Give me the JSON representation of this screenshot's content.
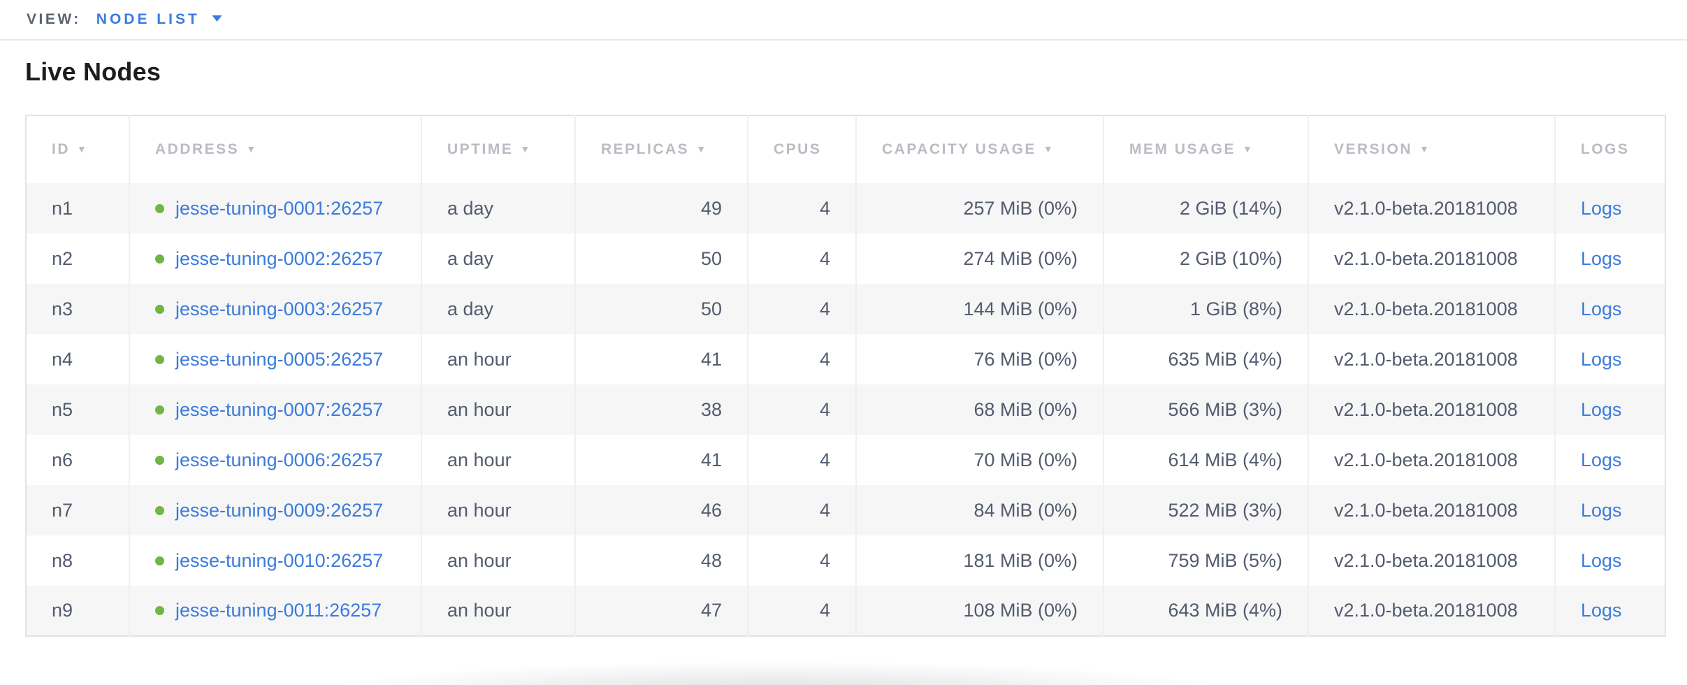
{
  "view_bar": {
    "label": "VIEW:",
    "selected_view": "NODE LIST"
  },
  "page": {
    "title": "Live Nodes"
  },
  "table": {
    "columns": [
      {
        "key": "id",
        "label": "ID",
        "sortable": true,
        "sorted_desc": true
      },
      {
        "key": "address",
        "label": "ADDRESS",
        "sortable": true,
        "sorted_desc": true
      },
      {
        "key": "uptime",
        "label": "UPTIME",
        "sortable": true,
        "sorted_desc": true
      },
      {
        "key": "replicas",
        "label": "REPLICAS",
        "sortable": true,
        "sorted_desc": true
      },
      {
        "key": "cpus",
        "label": "CPUS",
        "sortable": false,
        "sorted_desc": false
      },
      {
        "key": "capacity",
        "label": "CAPACITY USAGE",
        "sortable": true,
        "sorted_desc": true
      },
      {
        "key": "mem",
        "label": "MEM USAGE",
        "sortable": true,
        "sorted_desc": true
      },
      {
        "key": "version",
        "label": "VERSION",
        "sortable": true,
        "sorted_desc": true
      },
      {
        "key": "logs",
        "label": "LOGS",
        "sortable": false,
        "sorted_desc": false
      }
    ],
    "rows": [
      {
        "id": "n1",
        "status_icon": "green-dot",
        "address": "jesse-tuning-0001:26257",
        "uptime": "a day",
        "replicas": "49",
        "cpus": "4",
        "capacity": "257 MiB (0%)",
        "mem": "2 GiB (14%)",
        "version": "v2.1.0-beta.20181008",
        "logs": "Logs"
      },
      {
        "id": "n2",
        "status_icon": "green-dot",
        "address": "jesse-tuning-0002:26257",
        "uptime": "a day",
        "replicas": "50",
        "cpus": "4",
        "capacity": "274 MiB (0%)",
        "mem": "2 GiB (10%)",
        "version": "v2.1.0-beta.20181008",
        "logs": "Logs"
      },
      {
        "id": "n3",
        "status_icon": "green-dot",
        "address": "jesse-tuning-0003:26257",
        "uptime": "a day",
        "replicas": "50",
        "cpus": "4",
        "capacity": "144 MiB (0%)",
        "mem": "1 GiB (8%)",
        "version": "v2.1.0-beta.20181008",
        "logs": "Logs"
      },
      {
        "id": "n4",
        "status_icon": "green-dot",
        "address": "jesse-tuning-0005:26257",
        "uptime": "an hour",
        "replicas": "41",
        "cpus": "4",
        "capacity": "76 MiB (0%)",
        "mem": "635 MiB (4%)",
        "version": "v2.1.0-beta.20181008",
        "logs": "Logs"
      },
      {
        "id": "n5",
        "status_icon": "green-dot",
        "address": "jesse-tuning-0007:26257",
        "uptime": "an hour",
        "replicas": "38",
        "cpus": "4",
        "capacity": "68 MiB (0%)",
        "mem": "566 MiB (3%)",
        "version": "v2.1.0-beta.20181008",
        "logs": "Logs"
      },
      {
        "id": "n6",
        "status_icon": "green-dot",
        "address": "jesse-tuning-0006:26257",
        "uptime": "an hour",
        "replicas": "41",
        "cpus": "4",
        "capacity": "70 MiB (0%)",
        "mem": "614 MiB (4%)",
        "version": "v2.1.0-beta.20181008",
        "logs": "Logs"
      },
      {
        "id": "n7",
        "status_icon": "green-dot",
        "address": "jesse-tuning-0009:26257",
        "uptime": "an hour",
        "replicas": "46",
        "cpus": "4",
        "capacity": "84 MiB (0%)",
        "mem": "522 MiB (3%)",
        "version": "v2.1.0-beta.20181008",
        "logs": "Logs"
      },
      {
        "id": "n8",
        "status_icon": "green-dot",
        "address": "jesse-tuning-0010:26257",
        "uptime": "an hour",
        "replicas": "48",
        "cpus": "4",
        "capacity": "181 MiB (0%)",
        "mem": "759 MiB (5%)",
        "version": "v2.1.0-beta.20181008",
        "logs": "Logs"
      },
      {
        "id": "n9",
        "status_icon": "green-dot",
        "address": "jesse-tuning-0011:26257",
        "uptime": "an hour",
        "replicas": "47",
        "cpus": "4",
        "capacity": "108 MiB (0%)",
        "mem": "643 MiB (4%)",
        "version": "v2.1.0-beta.20181008",
        "logs": "Logs"
      }
    ]
  },
  "colors": {
    "link_blue": "#3b7bdd",
    "status_green": "#71b544",
    "header_gray": "#b9bcc2",
    "body_text": "#535b6e"
  }
}
